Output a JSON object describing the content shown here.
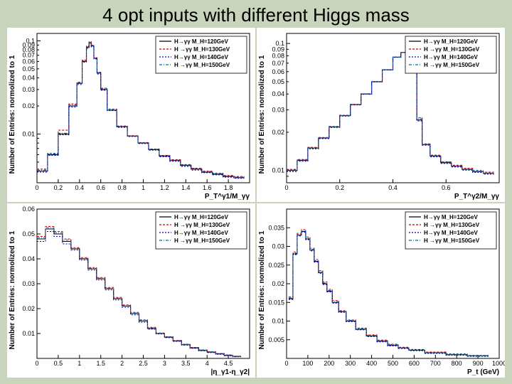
{
  "title": "4 opt inputs with different Higgs mass",
  "colors": {
    "bg": "#c8d4bc",
    "axis": "#000000",
    "s120": "#000000",
    "s130": "#cc0000",
    "s140": "#0000cc",
    "s150": "#0066aa"
  },
  "legend_items": [
    {
      "label": "H→γγ M_H=120GeV",
      "color": "#000000",
      "dash": ""
    },
    {
      "label": "H →γγ M_H=130GeV",
      "color": "#cc0000",
      "dash": "3,2"
    },
    {
      "label": "H→γγ M_H=140GeV",
      "color": "#0000cc",
      "dash": "2,2"
    },
    {
      "label": "H →γγ M_H=150GeV",
      "color": "#0066aa",
      "dash": "4,2,1,2"
    }
  ],
  "ylabel": "Number of Entries: normolized to 1",
  "panels": {
    "tl": {
      "xlabel": "P_T^γ1/M_γγ",
      "xlog": false,
      "ylog": true,
      "xlim": [
        0,
        2.0
      ],
      "ylim": [
        0.003,
        0.12
      ],
      "ymax_label": "0.1",
      "xticks": [
        0,
        0.2,
        0.4,
        0.6,
        0.8,
        1.0,
        1.2,
        1.4,
        1.6,
        1.8
      ],
      "xticklabels": [
        "0",
        "0.2",
        "0.4",
        "0.6",
        "0.8",
        "1",
        "1.2",
        "1.4",
        "1.6",
        "1.8"
      ],
      "data": {
        "x": [
          0.05,
          0.15,
          0.25,
          0.35,
          0.4,
          0.45,
          0.48,
          0.5,
          0.52,
          0.55,
          0.58,
          0.62,
          0.7,
          0.8,
          0.9,
          1.0,
          1.1,
          1.2,
          1.3,
          1.4,
          1.5,
          1.6,
          1.7,
          1.8,
          1.9
        ],
        "y120": [
          0.004,
          0.006,
          0.01,
          0.02,
          0.035,
          0.06,
          0.085,
          0.095,
          0.088,
          0.065,
          0.045,
          0.03,
          0.018,
          0.012,
          0.0095,
          0.008,
          0.0068,
          0.0058,
          0.0052,
          0.0046,
          0.0042,
          0.0039,
          0.0037,
          0.0035,
          0.0034
        ],
        "y130": [
          0.0042,
          0.0062,
          0.011,
          0.021,
          0.036,
          0.062,
          0.088,
          0.098,
          0.09,
          0.066,
          0.046,
          0.031,
          0.0185,
          0.0122,
          0.0096,
          0.0081,
          0.0069,
          0.0059,
          0.0053,
          0.0047,
          0.0043,
          0.004,
          0.0038,
          0.0036,
          0.0035
        ],
        "y140": [
          0.0039,
          0.0059,
          0.0098,
          0.0195,
          0.034,
          0.059,
          0.083,
          0.093,
          0.086,
          0.064,
          0.044,
          0.0295,
          0.0178,
          0.0118,
          0.0094,
          0.0079,
          0.0067,
          0.0057,
          0.0051,
          0.0045,
          0.0041,
          0.00385,
          0.00365,
          0.00345,
          0.00335
        ],
        "y150": [
          0.0041,
          0.0061,
          0.0102,
          0.0205,
          0.0355,
          0.061,
          0.086,
          0.096,
          0.089,
          0.0655,
          0.0455,
          0.0305,
          0.0182,
          0.0121,
          0.00955,
          0.00805,
          0.00685,
          0.00585,
          0.00525,
          0.00465,
          0.00425,
          0.00395,
          0.00375,
          0.00355,
          0.00345
        ]
      }
    },
    "tr": {
      "xlabel": "P_T^γ2/M_γγ",
      "xlog": false,
      "ylog": true,
      "xlim": [
        0,
        0.8
      ],
      "ylim": [
        0.008,
        0.12
      ],
      "ymax_label": "0.1",
      "xticks": [
        0,
        0.2,
        0.4,
        0.6
      ],
      "xticklabels": [
        "0",
        "0.2",
        "0.4",
        "0.6"
      ],
      "data": {
        "x": [
          0.02,
          0.06,
          0.1,
          0.14,
          0.18,
          0.22,
          0.26,
          0.3,
          0.34,
          0.38,
          0.42,
          0.44,
          0.46,
          0.48,
          0.5,
          0.52,
          0.56,
          0.6,
          0.64,
          0.68,
          0.72,
          0.76
        ],
        "y120": [
          0.01,
          0.012,
          0.015,
          0.018,
          0.022,
          0.027,
          0.033,
          0.04,
          0.05,
          0.062,
          0.078,
          0.085,
          0.09,
          0.092,
          0.025,
          0.016,
          0.013,
          0.0115,
          0.0108,
          0.0102,
          0.0098,
          0.0095
        ],
        "y130": [
          0.0102,
          0.0122,
          0.0152,
          0.0182,
          0.0222,
          0.0272,
          0.0332,
          0.0402,
          0.0502,
          0.0622,
          0.0782,
          0.0852,
          0.0905,
          0.0925,
          0.026,
          0.0162,
          0.0132,
          0.0117,
          0.011,
          0.0104,
          0.01,
          0.0097
        ],
        "y140": [
          0.0098,
          0.0118,
          0.0148,
          0.0178,
          0.0218,
          0.0268,
          0.0328,
          0.0398,
          0.0498,
          0.0618,
          0.0778,
          0.0848,
          0.0895,
          0.0915,
          0.0245,
          0.0158,
          0.0128,
          0.01135,
          0.01065,
          0.01005,
          0.00965,
          0.00935
        ],
        "y150": [
          0.0101,
          0.0121,
          0.0151,
          0.0181,
          0.0221,
          0.0271,
          0.0331,
          0.0401,
          0.0501,
          0.0621,
          0.0781,
          0.0851,
          0.0902,
          0.0922,
          0.0255,
          0.0161,
          0.0131,
          0.01165,
          0.01085,
          0.01025,
          0.00985,
          0.00955
        ]
      }
    },
    "bl": {
      "xlabel": "|η_γ1-η_γ2|",
      "xlog": false,
      "ylog": false,
      "xlim": [
        0,
        5.0
      ],
      "ylim": [
        0,
        0.06
      ],
      "xticks": [
        0,
        0.5,
        1.0,
        1.5,
        2.0,
        2.5,
        3.0,
        3.5,
        4.0,
        4.5
      ],
      "xticklabels": [
        "0",
        "0.5",
        "1",
        "1.5",
        "2",
        "2.5",
        "3",
        "3.5",
        "4",
        "4.5"
      ],
      "yticks": [
        0.01,
        0.02,
        0.03,
        0.04,
        0.05,
        0.06
      ],
      "yticklabels": [
        "0.01",
        "0.02",
        "0.03",
        "0.04",
        "0.05",
        "0.06"
      ],
      "data": {
        "x": [
          0.1,
          0.3,
          0.5,
          0.7,
          0.9,
          1.1,
          1.3,
          1.5,
          1.7,
          1.9,
          2.1,
          2.3,
          2.5,
          2.7,
          2.9,
          3.1,
          3.3,
          3.5,
          3.7,
          3.9,
          4.1,
          4.3,
          4.5,
          4.7
        ],
        "y120": [
          0.048,
          0.052,
          0.05,
          0.047,
          0.044,
          0.04,
          0.036,
          0.032,
          0.028,
          0.024,
          0.021,
          0.018,
          0.015,
          0.012,
          0.01,
          0.0085,
          0.007,
          0.0055,
          0.0042,
          0.0032,
          0.0025,
          0.0018,
          0.0012,
          0.0008
        ],
        "y130": [
          0.049,
          0.053,
          0.051,
          0.048,
          0.0445,
          0.0405,
          0.0365,
          0.0325,
          0.0285,
          0.0245,
          0.0215,
          0.0185,
          0.0155,
          0.0125,
          0.0102,
          0.0087,
          0.0072,
          0.0057,
          0.0044,
          0.0034,
          0.0027,
          0.002,
          0.0014,
          0.0009
        ],
        "y140": [
          0.047,
          0.051,
          0.049,
          0.046,
          0.0435,
          0.0395,
          0.0355,
          0.0315,
          0.0275,
          0.0235,
          0.0205,
          0.0175,
          0.0145,
          0.01175,
          0.00985,
          0.00835,
          0.00685,
          0.00535,
          0.00405,
          0.00305,
          0.00235,
          0.00165,
          0.00105,
          0.00065
        ],
        "y150": [
          0.0485,
          0.0525,
          0.0505,
          0.0475,
          0.0442,
          0.0402,
          0.0362,
          0.0322,
          0.0282,
          0.0242,
          0.0212,
          0.0182,
          0.0152,
          0.01225,
          0.01015,
          0.00865,
          0.00715,
          0.00565,
          0.00435,
          0.00335,
          0.00265,
          0.00195,
          0.00135,
          0.00085
        ]
      }
    },
    "br": {
      "xlabel": "P_t (GeV)",
      "xlog": false,
      "ylog": false,
      "xlim": [
        0,
        1000
      ],
      "ylim": [
        0,
        0.04
      ],
      "xticks": [
        0,
        100,
        200,
        300,
        400,
        500,
        600,
        700,
        800,
        900,
        1000
      ],
      "xticklabels": [
        "0",
        "100",
        "200",
        "300",
        "400",
        "500",
        "600",
        "700",
        "800",
        "900",
        "1000"
      ],
      "yticks": [
        0.005,
        0.01,
        0.015,
        0.02,
        0.025,
        0.03,
        0.035
      ],
      "yticklabels": [
        "0.005",
        "0.01",
        "0.015",
        "0.02",
        "0.025",
        "0.03",
        "0.035"
      ],
      "data": {
        "x": [
          20,
          40,
          60,
          80,
          100,
          120,
          140,
          160,
          180,
          200,
          230,
          260,
          300,
          350,
          400,
          450,
          500,
          550,
          600,
          700,
          800,
          900
        ],
        "y120": [
          0.016,
          0.028,
          0.033,
          0.034,
          0.032,
          0.029,
          0.026,
          0.023,
          0.02,
          0.018,
          0.015,
          0.0125,
          0.01,
          0.0078,
          0.006,
          0.0046,
          0.0035,
          0.0028,
          0.0022,
          0.0015,
          0.001,
          0.0007
        ],
        "y130": [
          0.0165,
          0.0285,
          0.0335,
          0.0345,
          0.0325,
          0.0295,
          0.0265,
          0.0235,
          0.0205,
          0.0185,
          0.0155,
          0.0128,
          0.0103,
          0.0081,
          0.0063,
          0.0049,
          0.0038,
          0.003,
          0.0024,
          0.0017,
          0.0012,
          0.0008
        ],
        "y140": [
          0.0158,
          0.0278,
          0.0328,
          0.0338,
          0.0318,
          0.0288,
          0.0258,
          0.0228,
          0.0198,
          0.0178,
          0.0148,
          0.01235,
          0.00985,
          0.00765,
          0.00585,
          0.00445,
          0.00335,
          0.00265,
          0.00205,
          0.00135,
          0.00085,
          0.00055
        ],
        "y150": [
          0.0162,
          0.0282,
          0.0332,
          0.0342,
          0.0322,
          0.0292,
          0.0262,
          0.0232,
          0.0202,
          0.0182,
          0.0152,
          0.01265,
          0.01015,
          0.00795,
          0.00615,
          0.00475,
          0.00365,
          0.00285,
          0.00225,
          0.00155,
          0.00105,
          0.00065
        ]
      }
    }
  }
}
